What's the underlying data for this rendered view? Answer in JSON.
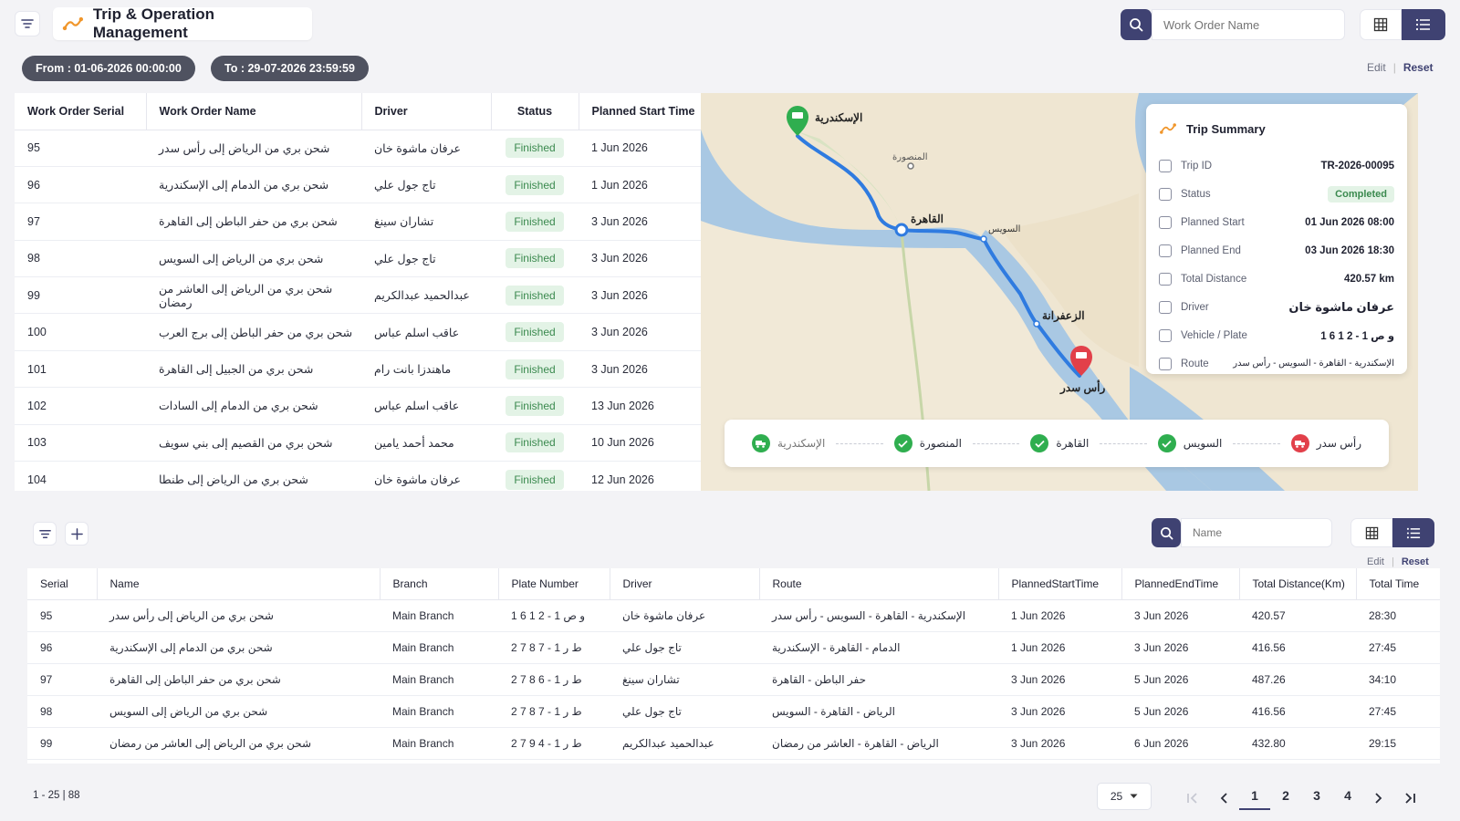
{
  "header": {
    "title": "Trip & Operation Management",
    "search_placeholder": "Work Order Name"
  },
  "filters": {
    "from": "From : 01-06-2026 00:00:00",
    "to": "To : 29-07-2026 23:59:59",
    "edit": "Edit",
    "reset": "Reset"
  },
  "orders_table": {
    "columns": [
      "Work Order Serial",
      "Work Order Name",
      "Driver",
      "Status",
      "Planned Start Time"
    ],
    "rows": [
      {
        "serial": "95",
        "name": "شحن بري من الرياض إلى رأس سدر",
        "driver": "عرفان ماشوة خان",
        "status": "Finished",
        "start": "1 Jun 2026"
      },
      {
        "serial": "96",
        "name": "شحن بري من الدمام إلى الإسكندرية",
        "driver": "تاج جول علي",
        "status": "Finished",
        "start": "1 Jun 2026"
      },
      {
        "serial": "97",
        "name": "شحن بري من حفر الباطن إلى القاهرة",
        "driver": "تشاران سينغ",
        "status": "Finished",
        "start": "3 Jun 2026"
      },
      {
        "serial": "98",
        "name": "شحن بري من الرياض إلى السويس",
        "driver": "تاج جول علي",
        "status": "Finished",
        "start": "3 Jun 2026"
      },
      {
        "serial": "99",
        "name": "شحن بري من الرياض إلى العاشر من رمضان",
        "driver": "عبدالحميد عبدالكريم",
        "status": "Finished",
        "start": "3 Jun 2026"
      },
      {
        "serial": "100",
        "name": "شحن بري من حفر الباطن إلى برج العرب",
        "driver": "عاقب اسلم عباس",
        "status": "Finished",
        "start": "3 Jun 2026"
      },
      {
        "serial": "101",
        "name": "شحن بري من الجبيل إلى القاهرة",
        "driver": "ماهندزا بانت رام",
        "status": "Finished",
        "start": "3 Jun 2026"
      },
      {
        "serial": "102",
        "name": "شحن بري من الدمام إلى السادات",
        "driver": "عاقب اسلم عباس",
        "status": "Finished",
        "start": "13 Jun 2026"
      },
      {
        "serial": "103",
        "name": "شحن بري من القصيم إلى بني سويف",
        "driver": "محمد أحمد يامين",
        "status": "Finished",
        "start": "10 Jun 2026"
      },
      {
        "serial": "104",
        "name": "شحن بري من الرياض إلى طنطا",
        "driver": "عرفان ماشوة خان",
        "status": "Finished",
        "start": "12 Jun 2026"
      }
    ]
  },
  "map": {
    "labels": {
      "alexandria": "الإسكندرية",
      "mansoura": "المنصورة",
      "cairo": "القاهرة",
      "suez": "السويس",
      "zaafarana": "الزعفرانة",
      "ras_sedr": "رأس سدر"
    }
  },
  "trip_summary": {
    "title": "Trip Summary",
    "rows": [
      {
        "label": "Trip ID",
        "value": "TR-2026-00095"
      },
      {
        "label": "Status",
        "value": "Completed"
      },
      {
        "label": "Planned Start",
        "value": "01 Jun 2026 08:00"
      },
      {
        "label": "Planned End",
        "value": "03 Jun 2026 18:30"
      },
      {
        "label": "Total Distance",
        "value": "420.57 km"
      },
      {
        "label": "Driver",
        "value": "عرفان ماشوة خان"
      },
      {
        "label": "Vehicle / Plate",
        "value": "1 6 1 2 - و ص 1"
      },
      {
        "label": "Route",
        "value": "الإسكندرية - القاهرة - السويس - رأس سدر"
      }
    ]
  },
  "route_stops": [
    "الإسكندرية",
    "المنصورة",
    "القاهرة",
    "السويس",
    "رأس سدر"
  ],
  "bottom": {
    "search_placeholder": "Name",
    "edit": "Edit",
    "reset": "Reset",
    "columns": [
      "Serial",
      "Name",
      "Branch",
      "Plate Number",
      "Driver",
      "Route",
      "PlannedStartTime",
      "PlannedEndTime",
      "Total Distance(Km)",
      "Total Time"
    ],
    "rows": [
      {
        "serial": "95",
        "name": "شحن بري من الرياض إلى رأس سدر",
        "branch": "Main Branch",
        "plate": "1 6 1 2 - و ص 1",
        "driver": "عرفان ماشوة خان",
        "route": "الإسكندرية - القاهرة - السويس - رأس سدر",
        "start": "1 Jun 2026",
        "end": "3 Jun 2026",
        "distance": "420.57",
        "time": "28:30"
      },
      {
        "serial": "96",
        "name": "شحن بري من الدمام إلى الإسكندرية",
        "branch": "Main Branch",
        "plate": "2 7 8 7 - ط ر 1",
        "driver": "تاج جول علي",
        "route": "الدمام - القاهرة - الإسكندرية",
        "start": "1 Jun 2026",
        "end": "3 Jun 2026",
        "distance": "416.56",
        "time": "27:45"
      },
      {
        "serial": "97",
        "name": "شحن بري من حفر الباطن إلى القاهرة",
        "branch": "Main Branch",
        "plate": "2 7 8 6 - ط ر 1",
        "driver": "تشاران سينغ",
        "route": "حفر الباطن - القاهرة",
        "start": "3 Jun 2026",
        "end": "5 Jun 2026",
        "distance": "487.26",
        "time": "34:10"
      },
      {
        "serial": "98",
        "name": "شحن بري من الرياض إلى السويس",
        "branch": "Main Branch",
        "plate": "2 7 8 7 - ط ر 1",
        "driver": "تاج جول علي",
        "route": "الرياض - القاهرة - السويس",
        "start": "3 Jun 2026",
        "end": "5 Jun 2026",
        "distance": "416.56",
        "time": "27:45"
      },
      {
        "serial": "99",
        "name": "شحن بري من الرياض إلى العاشر من رمضان",
        "branch": "Main Branch",
        "plate": "2 7 9 4 - ط ر 1",
        "driver": "عبدالحميد عبدالكريم",
        "route": "الرياض - القاهرة - العاشر من رمضان",
        "start": "3 Jun 2026",
        "end": "6 Jun 2026",
        "distance": "432.80",
        "time": "29:15"
      }
    ],
    "range": "1 - 25 | 88",
    "page_size": "25",
    "pages": [
      "1",
      "2",
      "3",
      "4"
    ],
    "current_page": "1"
  },
  "colors": {
    "accent": "#3f4272",
    "success_bg": "#e3f3e6",
    "success_text": "#3b8a4f",
    "route_line": "#2f7be0",
    "start_pin": "#2fae4f",
    "end_pin": "#e2404a"
  }
}
